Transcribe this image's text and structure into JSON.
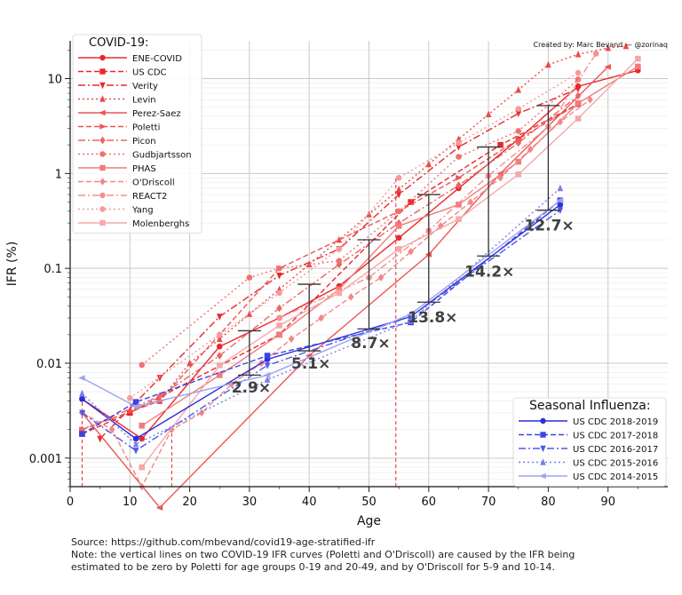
{
  "credit": "Created by: Marc Bevand — @zorinaq",
  "source_line": "Source: https://github.com/mbevand/covid19-age-stratified-ifr",
  "note_line1": "Note: the vertical lines on two COVID-19 IFR curves (Poletti and O'Driscoll) are caused by the IFR being",
  "note_line2": "estimated to be zero by Poletti for age groups 0-19 and 20-49, and by O'Driscoll for 5-9 and 10-14.",
  "chart_data": {
    "type": "line",
    "xlabel": "Age",
    "ylabel": "IFR (%)",
    "xlim": [
      0,
      100
    ],
    "ylim": [
      0.0005,
      25
    ],
    "yscale": "log",
    "grid": true,
    "x_ticks": [
      "0",
      "10",
      "20",
      "30",
      "40",
      "50",
      "60",
      "70",
      "80",
      "90"
    ],
    "y_ticks": [
      {
        "v": 0.001,
        "label": "0.001"
      },
      {
        "v": 0.01,
        "label": "0.01"
      },
      {
        "v": 0.1,
        "label": "0.1"
      },
      {
        "v": 1,
        "label": "1"
      },
      {
        "v": 10,
        "label": "10"
      }
    ],
    "legend_covid_title": "COVID-19:",
    "legend_flu_title": "Seasonal Influenza:",
    "covid_series": [
      {
        "name": "ENE-COVID",
        "color": "#e8282e",
        "dash": "",
        "marker": "circle",
        "x": [
          2,
          12,
          25,
          35,
          45,
          55,
          65,
          75,
          85,
          95
        ],
        "y": [
          0.0042,
          0.0016,
          0.015,
          0.03,
          0.065,
          0.21,
          0.7,
          2.3,
          8.3,
          12.2
        ]
      },
      {
        "name": "US CDC",
        "color": "#e8282e",
        "dash": "6,3",
        "marker": "square",
        "x": [
          2,
          10,
          35,
          57,
          72,
          85
        ],
        "y": [
          0.0018,
          0.003,
          0.02,
          0.5,
          2.0,
          5.4
        ]
      },
      {
        "name": "Verity",
        "color": "#e8282e",
        "dash": "8,3,2,3",
        "marker": "tri-down",
        "x": [
          5,
          15,
          25,
          35,
          45,
          55,
          65,
          75,
          85
        ],
        "y": [
          0.0016,
          0.007,
          0.031,
          0.084,
          0.16,
          0.6,
          1.9,
          4.3,
          7.8
        ]
      },
      {
        "name": "Levin",
        "color": "#ea4a4a",
        "dash": "2,3",
        "marker": "tri-up",
        "x": [
          10,
          15,
          20,
          25,
          30,
          35,
          40,
          45,
          50,
          55,
          60,
          65,
          70,
          75,
          80,
          85,
          90,
          93
        ],
        "y": [
          0.0032,
          0.004,
          0.01,
          0.018,
          0.033,
          0.06,
          0.11,
          0.2,
          0.37,
          0.68,
          1.25,
          2.3,
          4.2,
          7.6,
          14,
          18,
          21,
          22
        ]
      },
      {
        "name": "Perez-Saez",
        "color": "#ec5555",
        "dash": "",
        "marker": "tri-left",
        "x": [
          2,
          15,
          40,
          60,
          72,
          90
        ],
        "y": [
          0.003,
          0.0003,
          0.012,
          0.14,
          1.0,
          13.3
        ]
      },
      {
        "name": "Poletti",
        "color": "#ec5555",
        "dash": "6,3",
        "marker": "tri-right",
        "x": [
          2,
          15,
          35,
          55,
          65,
          75,
          85
        ],
        "y": [
          0.002,
          0.004,
          0.1,
          0.4,
          0.9,
          2.3,
          5.4
        ]
      },
      {
        "name": "Picon",
        "color": "#ef6464",
        "dash": "8,3,2,3",
        "marker": "diamond",
        "x": [
          2,
          15,
          25,
          35,
          45,
          55,
          65,
          75,
          85
        ],
        "y": [
          0.002,
          0.0045,
          0.012,
          0.038,
          0.11,
          0.3,
          0.75,
          2.1,
          6.6
        ]
      },
      {
        "name": "Gudbjartsson",
        "color": "#f07070",
        "dash": "2,3",
        "marker": "circle",
        "x": [
          12,
          30,
          35,
          45,
          55,
          65,
          75,
          85
        ],
        "y": [
          0.0096,
          0.08,
          0.1,
          0.12,
          0.4,
          1.5,
          2.8,
          9.8
        ]
      },
      {
        "name": "PHAS",
        "color": "#f17c7c",
        "dash": "",
        "marker": "square",
        "x": [
          12,
          25,
          35,
          45,
          55,
          65,
          75,
          85,
          95
        ],
        "y": [
          0.0022,
          0.0075,
          0.02,
          0.06,
          0.28,
          0.47,
          1.33,
          5.5,
          13.4
        ]
      },
      {
        "name": "O'Driscoll",
        "color": "#f28787",
        "dash": "6,3",
        "marker": "diamond",
        "x": [
          2,
          7,
          12,
          17,
          22,
          27,
          32,
          37,
          42,
          47,
          52,
          57,
          62,
          67,
          72,
          77,
          82,
          87
        ],
        "y": [
          0.003,
          0.002,
          0.0005,
          0.002,
          0.003,
          0.006,
          0.01,
          0.018,
          0.03,
          0.05,
          0.08,
          0.15,
          0.28,
          0.5,
          0.9,
          1.8,
          3.5,
          6.0
        ]
      },
      {
        "name": "REACT2",
        "color": "#f49090",
        "dash": "8,3,2,3",
        "marker": "circle",
        "x": [
          35,
          50,
          60,
          70,
          80,
          88
        ],
        "y": [
          0.03,
          0.08,
          0.25,
          0.95,
          3.1,
          18.3
        ]
      },
      {
        "name": "Yang",
        "color": "#f59b9b",
        "dash": "2,3",
        "marker": "circle",
        "x": [
          10,
          25,
          35,
          45,
          55,
          65,
          75,
          85
        ],
        "y": [
          0.0043,
          0.02,
          0.055,
          0.16,
          0.9,
          2.1,
          4.8,
          11.5
        ]
      },
      {
        "name": "Molenberghs",
        "color": "#f6a8a8",
        "dash": "",
        "marker": "square",
        "x": [
          12,
          25,
          35,
          45,
          55,
          65,
          75,
          85,
          95
        ],
        "y": [
          0.0008,
          0.0095,
          0.025,
          0.055,
          0.16,
          0.33,
          0.98,
          3.8,
          16.2
        ]
      }
    ],
    "flu_series": [
      {
        "name": "US CDC 2018-2019",
        "color": "#2a2fd9",
        "dash": "",
        "marker": "circle",
        "x": [
          2,
          11,
          33,
          57,
          82
        ],
        "y": [
          0.0042,
          0.0016,
          0.011,
          0.031,
          0.47
        ]
      },
      {
        "name": "US CDC 2017-2018",
        "color": "#3c45e0",
        "dash": "6,3",
        "marker": "square",
        "x": [
          2,
          11,
          33,
          57,
          82
        ],
        "y": [
          0.0018,
          0.0039,
          0.012,
          0.027,
          0.52
        ]
      },
      {
        "name": "US CDC 2016-2017",
        "color": "#4e59e4",
        "dash": "8,3,2,3",
        "marker": "tri-down",
        "x": [
          2,
          11,
          33,
          57,
          82
        ],
        "y": [
          0.003,
          0.0012,
          0.0095,
          0.031,
          0.41
        ]
      },
      {
        "name": "US CDC 2015-2016",
        "color": "#7a7fe8",
        "dash": "2,3",
        "marker": "tri-up",
        "x": [
          2,
          11,
          33,
          57,
          82
        ],
        "y": [
          0.0048,
          0.0014,
          0.0067,
          0.028,
          0.7
        ]
      },
      {
        "name": "US CDC 2014-2015",
        "color": "#9ea4ee",
        "dash": "",
        "marker": "tri-left",
        "x": [
          2,
          11,
          33,
          57,
          82
        ],
        "y": [
          0.007,
          0.0035,
          0.0075,
          0.033,
          0.52
        ]
      }
    ],
    "vlines": [
      {
        "x": 2,
        "y1": 0.0002,
        "y2": 0.0045
      },
      {
        "x": 17,
        "y1": 0.0002,
        "y2": 0.0022
      },
      {
        "x": 54.5,
        "y1": 0.0002,
        "y2": 0.9
      }
    ],
    "ratio_bars": [
      {
        "x": 30,
        "low": 0.0075,
        "high": 0.022,
        "label": "2.9×",
        "label_x": 27,
        "label_y": 0.0049
      },
      {
        "x": 40,
        "low": 0.0135,
        "high": 0.068,
        "label": "5.1×",
        "label_x": 37,
        "label_y": 0.0088
      },
      {
        "x": 50,
        "low": 0.023,
        "high": 0.2,
        "label": "8.7×",
        "label_x": 47,
        "label_y": 0.0144
      },
      {
        "x": 60,
        "low": 0.044,
        "high": 0.6,
        "label": "13.8×",
        "label_x": 56.5,
        "label_y": 0.027
      },
      {
        "x": 70,
        "low": 0.135,
        "high": 1.9,
        "label": "14.2×",
        "label_x": 66,
        "label_y": 0.082
      },
      {
        "x": 80,
        "low": 0.41,
        "high": 5.2,
        "label": "12.7×",
        "label_x": 76,
        "label_y": 0.25
      }
    ]
  }
}
